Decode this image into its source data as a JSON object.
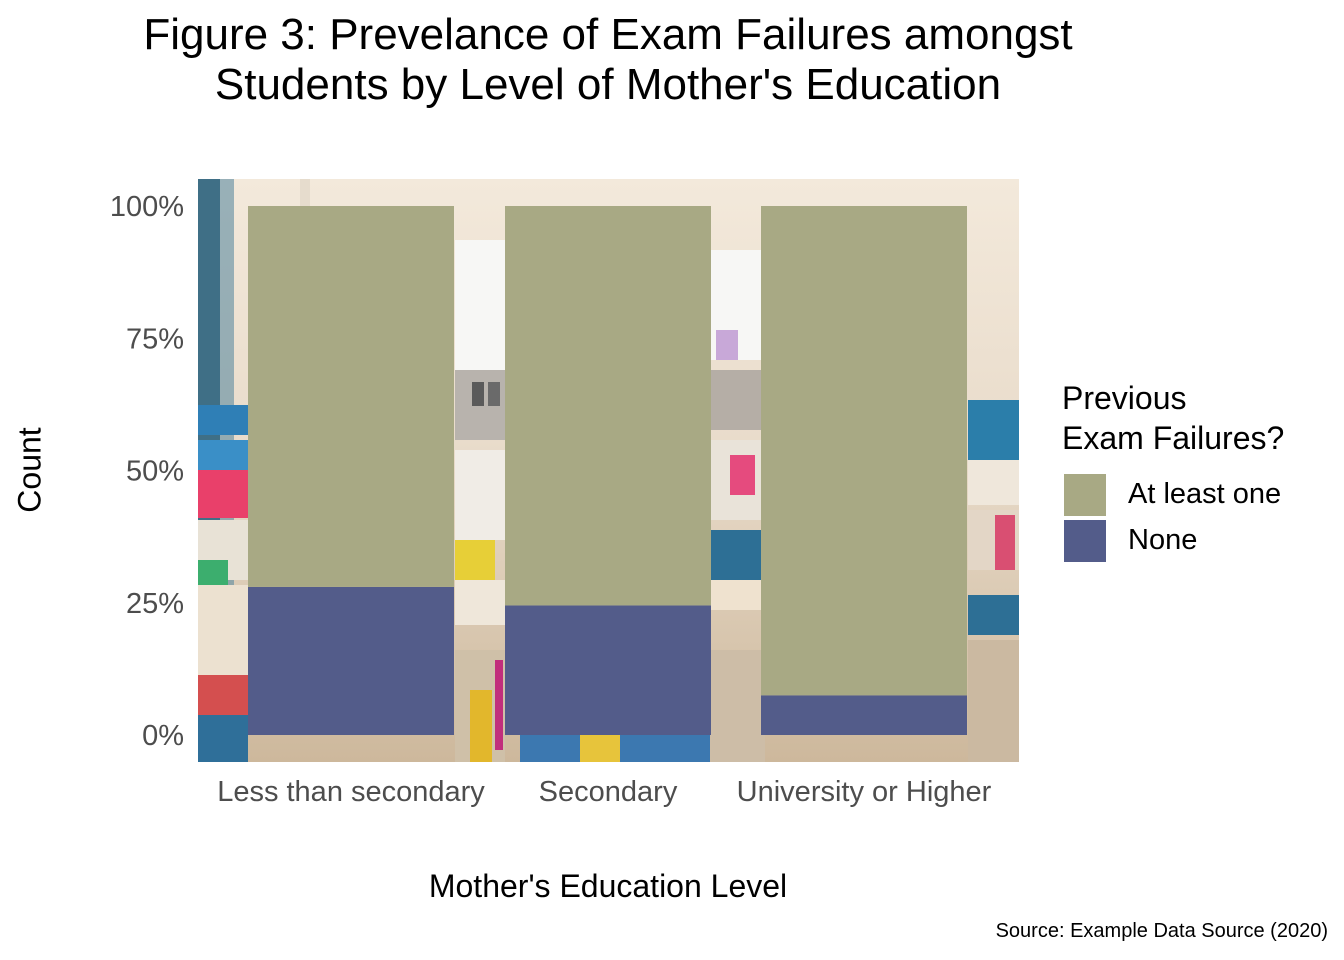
{
  "chart_data": {
    "type": "bar",
    "stacked": true,
    "normalized": true,
    "title": "Figure 3: Prevelance of Exam Failures amongst Students by Level of Mother's Education",
    "title_lines": [
      "Figure 3: Prevelance of Exam Failures amongst",
      "Students by Level of Mother's Education"
    ],
    "xlabel": "Mother's Education Level",
    "ylabel": "Count",
    "categories": [
      "Less than secondary",
      "Secondary",
      "University or Higher"
    ],
    "series": [
      {
        "name": "None",
        "color": "#535c8a",
        "values": [
          0.28,
          0.245,
          0.075
        ]
      },
      {
        "name": "At least one",
        "color": "#a8a984",
        "values": [
          0.72,
          0.755,
          0.925
        ]
      }
    ],
    "ylim": [
      0,
      1
    ],
    "yticks": [
      "0%",
      "25%",
      "50%",
      "75%",
      "100%"
    ],
    "legend": {
      "title_lines": [
        "Previous",
        "Exam Failures?"
      ],
      "entries": [
        {
          "label": "At least one",
          "color": "#a8a984"
        },
        {
          "label": "None",
          "color": "#535c8a"
        }
      ],
      "placement": "right"
    },
    "background": "classroom photo",
    "caption": "Source: Example Data Source (2020)"
  }
}
